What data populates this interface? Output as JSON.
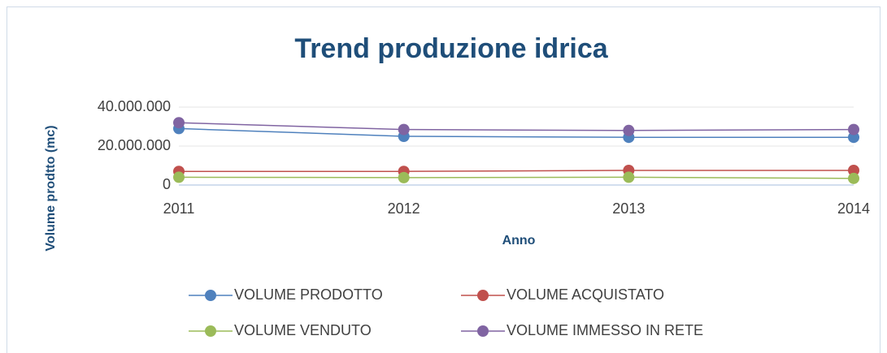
{
  "chart_data": {
    "type": "line",
    "title": "Trend produzione idrica",
    "x_label": "Anno",
    "y_label": "Volume prodtto (mc)",
    "categories": [
      "2011",
      "2012",
      "2013",
      "2014"
    ],
    "series": [
      {
        "name": "VOLUME PRODOTTO",
        "color": "#4f81bd",
        "values": [
          29000000,
          25000000,
          24500000,
          24500000
        ]
      },
      {
        "name": "VOLUME ACQUISTATO",
        "color": "#c0504d",
        "values": [
          7000000,
          7000000,
          7500000,
          7500000
        ]
      },
      {
        "name": "VOLUME VENDUTO",
        "color": "#9bbb59",
        "values": [
          4000000,
          3800000,
          4000000,
          3400000
        ]
      },
      {
        "name": "VOLUME IMMESSO IN RETE",
        "color": "#8064a2",
        "values": [
          32000000,
          28500000,
          28000000,
          28500000
        ]
      }
    ],
    "ylim": [
      0,
      40000000
    ],
    "yticks": [
      {
        "value": 0,
        "label": "0"
      },
      {
        "value": 20000000,
        "label": "20.000.000"
      },
      {
        "value": 40000000,
        "label": "40.000.000"
      }
    ],
    "legend": "bottom"
  }
}
